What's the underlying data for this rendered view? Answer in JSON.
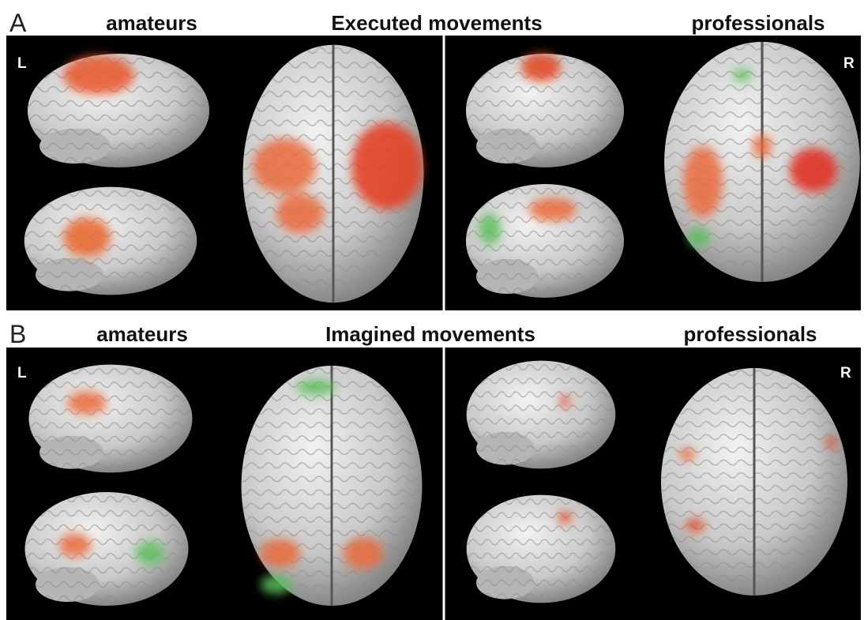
{
  "panels": [
    {
      "label": "A",
      "left_title": "amateurs",
      "center_title": "Executed movements",
      "right_title": "professionals",
      "left_marker": "L",
      "right_marker": "R"
    },
    {
      "label": "B",
      "left_title": "amateurs",
      "center_title": "Imagined movements",
      "right_title": "professionals",
      "left_marker": "L",
      "right_marker": "R"
    }
  ]
}
